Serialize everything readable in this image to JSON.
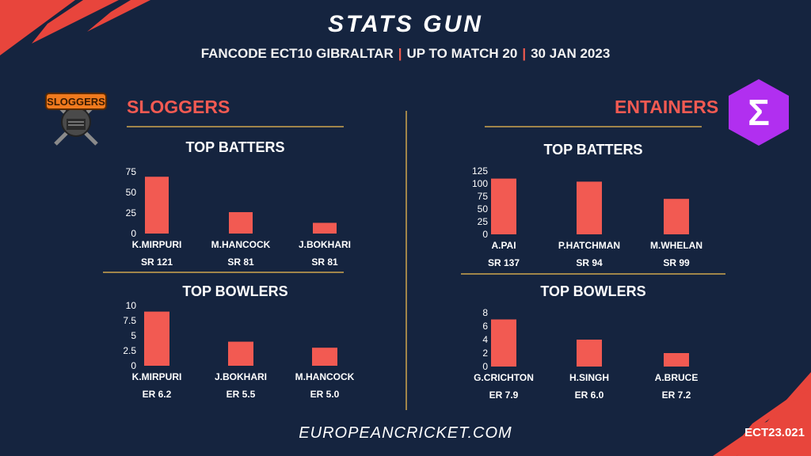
{
  "header": {
    "title": "STATS GUN",
    "subtitle_parts": [
      "FANCODE ECT10 GIBRALTAR",
      "UP TO MATCH  20",
      "30 JAN 2023"
    ]
  },
  "teams": {
    "left": {
      "name": "SLOGGERS",
      "logo_text": "SLOGGERS"
    },
    "right": {
      "name": "ENTAINERS",
      "logo_glyph": "Σ"
    }
  },
  "footer": {
    "site": "EUROPEANCRICKET.COM",
    "code": "ECT23.021"
  },
  "colors": {
    "bar": "#f25a52",
    "accent": "#f05a4f",
    "rule": "#a0854a",
    "background": "#15243f",
    "logo_purple": "#b12ff0"
  },
  "chart_data": [
    {
      "type": "bar",
      "title": "TOP BATTERS",
      "team": "SLOGGERS",
      "categories": [
        "K.MIRPURI",
        "M.HANCOCK",
        "J.BOKHARI"
      ],
      "values": [
        69,
        26,
        13
      ],
      "stats": [
        "SR 121",
        "SR 81",
        "SR 81"
      ],
      "yticks": [
        "0",
        "25",
        "50",
        "75"
      ],
      "ylim": [
        0,
        75
      ]
    },
    {
      "type": "bar",
      "title": "TOP BOWLERS",
      "team": "SLOGGERS",
      "categories": [
        "K.MIRPURI",
        "J.BOKHARI",
        "M.HANCOCK"
      ],
      "values": [
        9,
        4,
        3
      ],
      "stats": [
        "ER 6.2",
        "ER 5.5",
        "ER 5.0"
      ],
      "yticks": [
        "0",
        "2.5",
        "5",
        "7.5",
        "10"
      ],
      "ylim": [
        0,
        10
      ]
    },
    {
      "type": "bar",
      "title": "TOP BATTERS",
      "team": "ENTAINERS",
      "categories": [
        "A.PAI",
        "P.HATCHMAN",
        "M.WHELAN"
      ],
      "values": [
        110,
        104,
        70
      ],
      "stats": [
        "SR 137",
        "SR 94",
        "SR 99"
      ],
      "yticks": [
        "0",
        "25",
        "50",
        "75",
        "100",
        "125"
      ],
      "ylim": [
        0,
        125
      ]
    },
    {
      "type": "bar",
      "title": "TOP BOWLERS",
      "team": "ENTAINERS",
      "categories": [
        "G.CRICHTON",
        "H.SINGH",
        "A.BRUCE"
      ],
      "values": [
        7,
        4,
        2
      ],
      "stats": [
        "ER 7.9",
        "ER 6.0",
        "ER 7.2"
      ],
      "yticks": [
        "0",
        "2",
        "4",
        "6",
        "8"
      ],
      "ylim": [
        0,
        8
      ]
    }
  ]
}
